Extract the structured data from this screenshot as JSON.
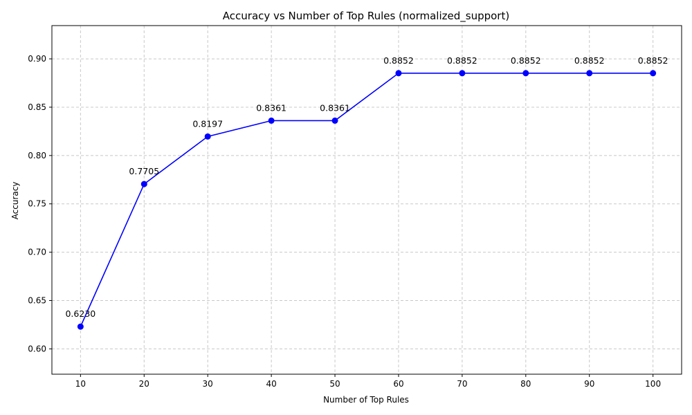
{
  "chart_data": {
    "type": "line",
    "title": "Accuracy vs Number of Top Rules (normalized_support)",
    "xlabel": "Number of Top Rules",
    "ylabel": "Accuracy",
    "x": [
      10,
      20,
      30,
      40,
      50,
      60,
      70,
      80,
      90,
      100
    ],
    "series": [
      {
        "values": [
          0.623,
          0.7705,
          0.8197,
          0.8361,
          0.8361,
          0.8852,
          0.8852,
          0.8852,
          0.8852,
          0.8852
        ],
        "data_labels": [
          "0.6230",
          "0.7705",
          "0.8197",
          "0.8361",
          "0.8361",
          "0.8852",
          "0.8852",
          "0.8852",
          "0.8852",
          "0.8852"
        ],
        "color": "#0000ff",
        "marker": "circle"
      }
    ],
    "xlim": [
      5.5,
      104.5
    ],
    "ylim": [
      0.5738,
      0.9344
    ],
    "xticks": [
      10,
      20,
      30,
      40,
      50,
      60,
      70,
      80,
      90,
      100
    ],
    "xtick_labels": [
      "10",
      "20",
      "30",
      "40",
      "50",
      "60",
      "70",
      "80",
      "90",
      "100"
    ],
    "yticks": [
      0.6,
      0.65,
      0.7,
      0.75,
      0.8,
      0.85,
      0.9
    ],
    "ytick_labels": [
      "0.60",
      "0.65",
      "0.70",
      "0.75",
      "0.80",
      "0.85",
      "0.90"
    ],
    "grid": true,
    "legend": "none"
  }
}
